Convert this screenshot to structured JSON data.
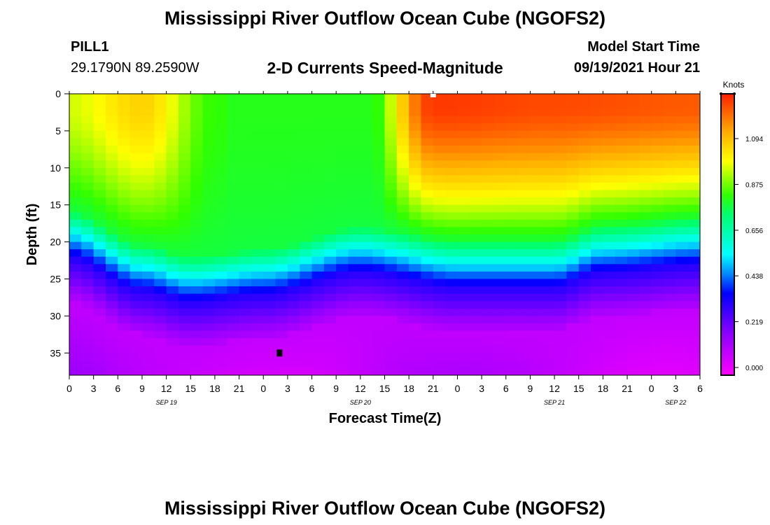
{
  "header": {
    "title": "Mississippi River Outflow Ocean Cube (NGOFS2)",
    "station_id": "PILL1",
    "coordinates": "29.1790N  89.2590W",
    "subtitle": "2-D Currents Speed-Magnitude",
    "model_start_label": "Model Start Time",
    "model_start_value": "09/19/2021 Hour 21"
  },
  "footer": {
    "title": "Mississippi River Outflow Ocean Cube (NGOFS2)"
  },
  "chart_data": {
    "type": "heatmap",
    "title": "2-D Currents Speed-Magnitude",
    "xlabel": "Forecast Time(Z)",
    "ylabel": "Depth (ft)",
    "x_range_hours": [
      0,
      78
    ],
    "y_range": [
      0,
      38
    ],
    "y_inverted": true,
    "x_tick_labels": [
      "0",
      "3",
      "6",
      "9",
      "12",
      "15",
      "18",
      "21",
      "0",
      "3",
      "6",
      "9",
      "12",
      "15",
      "18",
      "21",
      "0",
      "3",
      "6",
      "9",
      "12",
      "15",
      "18",
      "21",
      "0",
      "3",
      "6"
    ],
    "y_ticks": [
      0,
      5,
      10,
      15,
      20,
      25,
      30,
      35
    ],
    "date_labels": [
      {
        "text": "SEP 19",
        "hour": 12
      },
      {
        "text": "SEP 20",
        "hour": 36
      },
      {
        "text": "SEP 21",
        "hour": 60
      },
      {
        "text": "SEP 22",
        "hour": 75
      }
    ],
    "colorbar": {
      "unit_label": "Knots",
      "ticks": [
        "0.000",
        "0.219",
        "0.438",
        "0.656",
        "0.875",
        "1.094"
      ],
      "tick_values": [
        0.0,
        0.219,
        0.438,
        0.656,
        0.875,
        1.094
      ],
      "vmin": 0.0,
      "vmax": 1.25
    },
    "surface_current_speed_knots": [
      {
        "hour": 0,
        "value": 0.92
      },
      {
        "hour": 9,
        "value": 1.02
      },
      {
        "hour": 18,
        "value": 0.8
      },
      {
        "hour": 24,
        "value": 0.7
      },
      {
        "hour": 36,
        "value": 0.72
      },
      {
        "hour": 45,
        "value": 1.22
      },
      {
        "hour": 60,
        "value": 1.2
      },
      {
        "hour": 78,
        "value": 1.18
      }
    ],
    "lower_layer_top_depth_ft": [
      {
        "hour": 0,
        "value": 22
      },
      {
        "hour": 9,
        "value": 26.5
      },
      {
        "hour": 15,
        "value": 28
      },
      {
        "hour": 24,
        "value": 27
      },
      {
        "hour": 36,
        "value": 24
      },
      {
        "hour": 48,
        "value": 26
      },
      {
        "hour": 60,
        "value": 26
      },
      {
        "hour": 66,
        "value": 24
      },
      {
        "hour": 78,
        "value": 23
      }
    ],
    "markers": [
      {
        "name": "forecast-start-marker",
        "hour": 45,
        "depth": 0
      },
      {
        "name": "depth-marker",
        "hour": 26,
        "depth": 35
      }
    ]
  }
}
